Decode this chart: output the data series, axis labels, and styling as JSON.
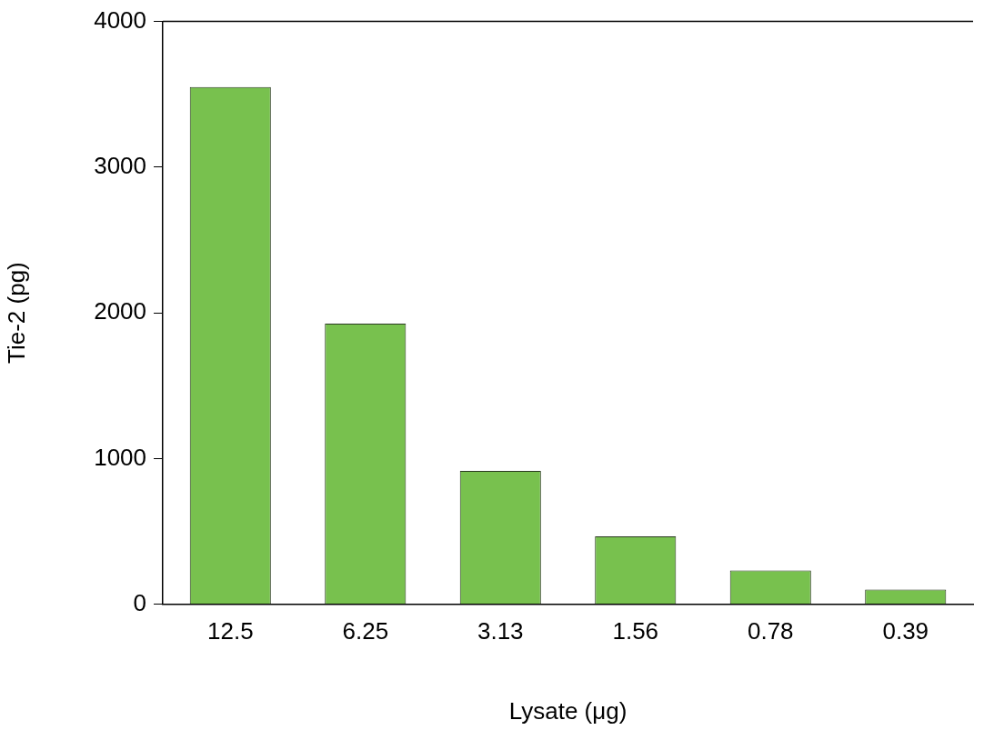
{
  "chart_data": {
    "type": "bar",
    "xlabel": "Lysate (μg)",
    "ylabel": "Tie-2 (pg)",
    "categories": [
      "12.5",
      "6.25",
      "3.13",
      "1.56",
      "0.78",
      "0.39"
    ],
    "values": [
      3550,
      1925,
      915,
      465,
      232,
      100
    ],
    "color": "#78c14e",
    "ylim": [
      0,
      4000
    ],
    "yticks": [
      0,
      1000,
      2000,
      3000,
      4000
    ],
    "grid": false
  }
}
